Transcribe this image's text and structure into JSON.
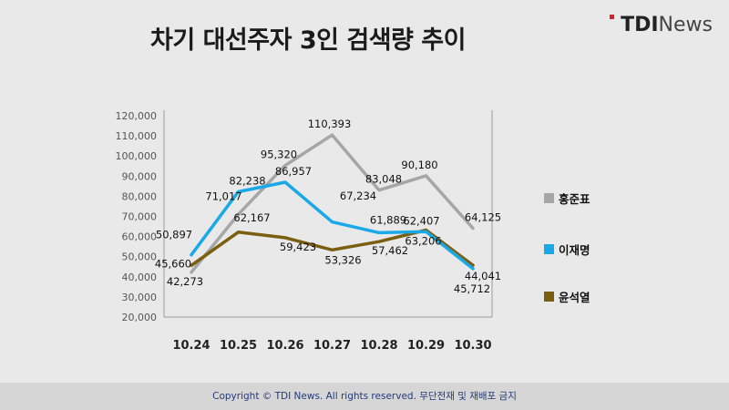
{
  "header": {
    "title": "차기 대선주자 3인 검색량 추이"
  },
  "brand": {
    "logo_bold": "TDI",
    "logo_light": "News",
    "accent": "#d8232a"
  },
  "footer": {
    "text": "Copyright © TDI News. All rights reserved. 무단전재 및 재배포 금지"
  },
  "chart_data": {
    "type": "line",
    "title": "차기 대선주자 3인 검색량 추이",
    "xlabel": "",
    "ylabel": "",
    "categories": [
      "10.24",
      "10.25",
      "10.26",
      "10.27",
      "10.28",
      "10.29",
      "10.30"
    ],
    "ylim": [
      20000,
      120000
    ],
    "yticks": [
      20000,
      30000,
      40000,
      50000,
      60000,
      70000,
      80000,
      90000,
      100000,
      110000,
      120000
    ],
    "ytick_labels": [
      "20,000",
      "30,000",
      "40,000",
      "50,000",
      "60,000",
      "70,000",
      "80,000",
      "90,000",
      "100,000",
      "110,000",
      "120,000"
    ],
    "grid": false,
    "legend_position": "right",
    "series": [
      {
        "name": "홍준표",
        "color": "#a6a6a6",
        "values": [
          42273,
          71017,
          95320,
          110393,
          83048,
          90180,
          64125
        ],
        "labels": [
          "42,273",
          "71,017",
          "95,320",
          "110,393",
          "83,048",
          "90,180",
          "64,125"
        ]
      },
      {
        "name": "이재명",
        "color": "#1aa9e8",
        "values": [
          50897,
          82238,
          86957,
          67234,
          61889,
          62407,
          44041
        ],
        "labels": [
          "50,897",
          "82,238",
          "86,957",
          "67,234",
          "61,889",
          "62,407",
          "44,041"
        ]
      },
      {
        "name": "윤석열",
        "color": "#7a5f10",
        "values": [
          45660,
          62167,
          59423,
          53326,
          57462,
          63206,
          45712
        ],
        "labels": [
          "45,660",
          "62,167",
          "59,423",
          "53,326",
          "57,462",
          "63,206",
          "45,712"
        ]
      }
    ]
  }
}
